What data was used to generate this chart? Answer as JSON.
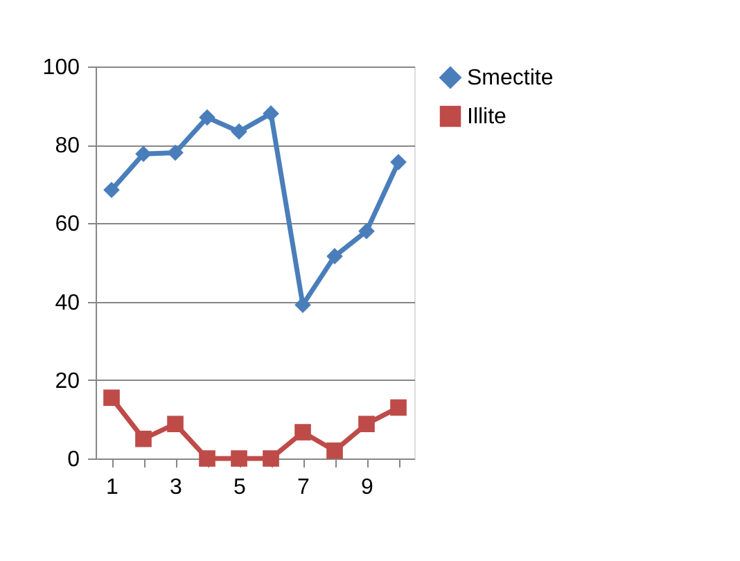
{
  "chart_data": {
    "type": "line",
    "categories": [
      "1",
      null,
      "3",
      null,
      "5",
      null,
      "7",
      null,
      "9",
      null
    ],
    "series": [
      {
        "name": "Smectite",
        "color": "#4a7ebb",
        "marker": "diamond",
        "values": [
          68.5,
          77.7,
          78,
          87,
          83.4,
          88,
          39.2,
          51.6,
          58,
          75.6
        ]
      },
      {
        "name": "Illite",
        "color": "#be4b48",
        "marker": "square",
        "values": [
          15.5,
          5,
          8.8,
          0,
          0,
          0,
          6.7,
          2,
          8.8,
          13
        ]
      }
    ],
    "ylim": [
      0,
      100
    ],
    "yticks": [
      0,
      20,
      40,
      60,
      80,
      100
    ],
    "grid": "y",
    "legend": "right",
    "line_style": "solid"
  }
}
